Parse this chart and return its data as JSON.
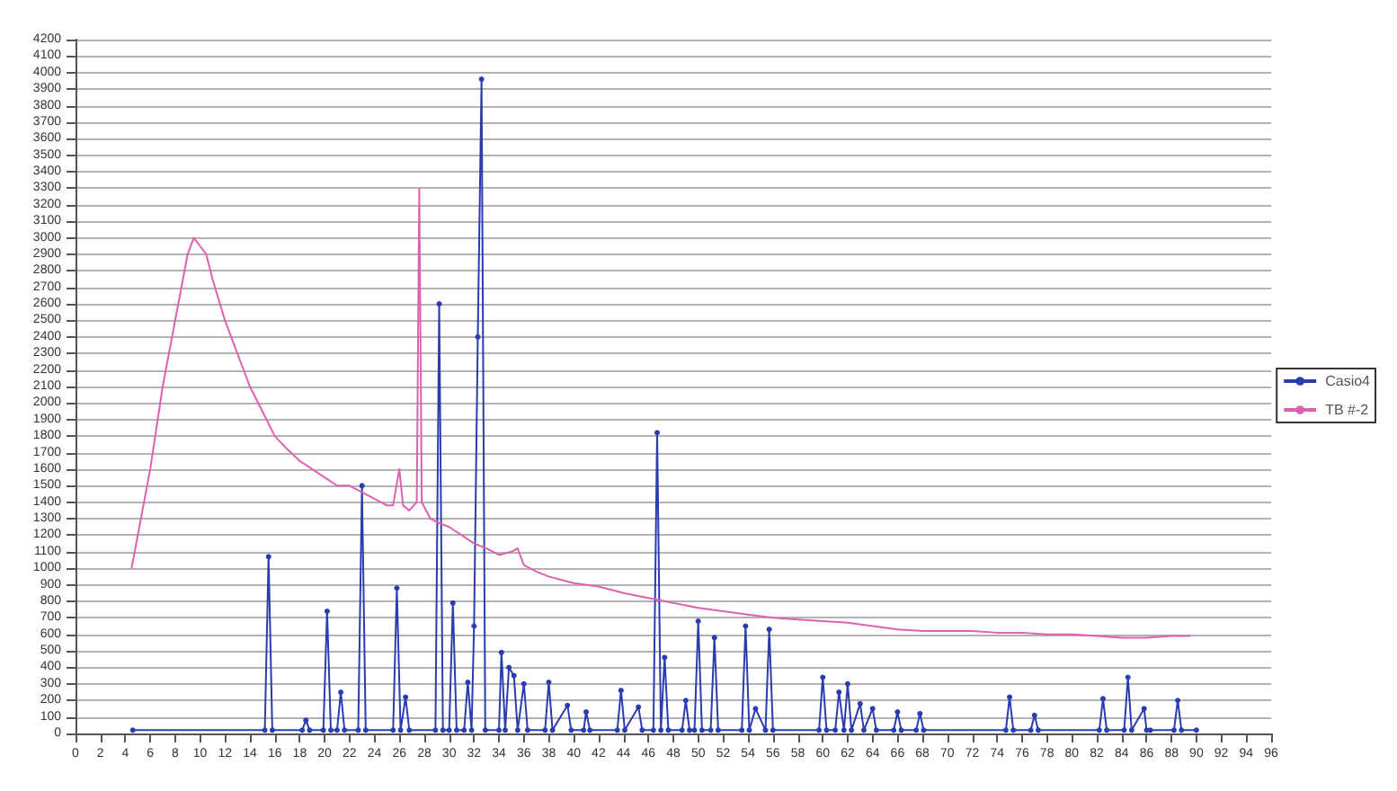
{
  "chart_data": {
    "type": "line",
    "xlim": [
      0,
      96
    ],
    "xticks": [
      0,
      2,
      4,
      6,
      8,
      10,
      12,
      14,
      16,
      18,
      20,
      22,
      24,
      26,
      28,
      30,
      32,
      34,
      36,
      38,
      40,
      42,
      44,
      46,
      48,
      50,
      52,
      54,
      56,
      58,
      60,
      62,
      64,
      66,
      68,
      70,
      72,
      74,
      76,
      78,
      80,
      82,
      84,
      86,
      88,
      90,
      92,
      94,
      96
    ],
    "ylim": [
      0,
      4200
    ],
    "yticks": [
      0,
      100,
      200,
      300,
      400,
      500,
      600,
      700,
      800,
      900,
      1000,
      1100,
      1200,
      1300,
      1400,
      1500,
      1600,
      1700,
      1800,
      1900,
      2000,
      2100,
      2200,
      2300,
      2400,
      2500,
      2600,
      2700,
      2800,
      2900,
      3000,
      3100,
      3200,
      3300,
      3400,
      3500,
      3600,
      3700,
      3800,
      3900,
      4000,
      4100,
      4200
    ],
    "grid": "y",
    "legend": "right",
    "series": [
      {
        "name": "Casio4",
        "color": "#2a3cb0",
        "marker": "circle",
        "x": [
          4.6,
          15.2,
          15.5,
          15.8,
          18.2,
          18.5,
          18.8,
          19.9,
          20.2,
          20.5,
          21,
          21.3,
          21.6,
          22.7,
          23,
          23.3,
          25.5,
          25.8,
          26.1,
          26.5,
          26.8,
          28.9,
          29.2,
          29.5,
          30,
          30.3,
          30.6,
          31.2,
          31.5,
          31.8,
          32,
          32.3,
          32.6,
          32.9,
          34,
          34.2,
          34.5,
          34.8,
          35.2,
          35.5,
          36,
          36.3,
          37.7,
          38,
          38.3,
          39.5,
          39.8,
          40.8,
          41,
          41.3,
          43.5,
          43.8,
          44.1,
          45.2,
          45.5,
          46.4,
          46.7,
          47,
          47.3,
          47.6,
          48.7,
          49,
          49.3,
          49.7,
          50,
          50.3,
          51,
          51.3,
          51.6,
          53.5,
          53.8,
          54.1,
          54.6,
          55.4,
          55.7,
          56,
          59.7,
          60,
          60.3,
          61,
          61.3,
          61.7,
          62,
          62.3,
          63,
          63.3,
          64,
          64.3,
          65.7,
          66,
          66.3,
          67.5,
          67.8,
          68.1,
          74.7,
          75,
          75.3,
          76.7,
          77,
          77.3,
          82.2,
          82.5,
          82.8,
          84.2,
          84.5,
          84.8,
          85.8,
          86,
          86.3,
          88.2,
          88.5,
          88.8,
          90
        ],
        "values": [
          20,
          20,
          1070,
          20,
          20,
          80,
          20,
          20,
          740,
          20,
          20,
          250,
          20,
          20,
          1500,
          20,
          20,
          880,
          20,
          220,
          20,
          20,
          2600,
          20,
          20,
          790,
          20,
          20,
          310,
          20,
          650,
          2400,
          3960,
          20,
          20,
          490,
          20,
          400,
          350,
          20,
          300,
          20,
          20,
          310,
          20,
          170,
          20,
          20,
          130,
          20,
          20,
          260,
          20,
          160,
          20,
          20,
          1820,
          20,
          460,
          20,
          20,
          200,
          20,
          20,
          680,
          20,
          20,
          580,
          20,
          20,
          650,
          20,
          150,
          20,
          630,
          20,
          20,
          340,
          20,
          20,
          250,
          20,
          300,
          20,
          180,
          20,
          150,
          20,
          20,
          130,
          20,
          20,
          120,
          20,
          20,
          220,
          20,
          20,
          110,
          20,
          20,
          210,
          20,
          20,
          340,
          20,
          150,
          20,
          20,
          20,
          200,
          20,
          20
        ]
      },
      {
        "name": "TB #-2",
        "color": "#e060b0",
        "marker": "none",
        "x": [
          4.5,
          6,
          7,
          8,
          9,
          9.5,
          10,
          10.5,
          11,
          12,
          13,
          14,
          15,
          16,
          17,
          18,
          19,
          20,
          21,
          22,
          23,
          24,
          25,
          25.5,
          26,
          26.3,
          26.8,
          27.4,
          27.6,
          27.8,
          28.5,
          29,
          30,
          31,
          32,
          33,
          34,
          35,
          35.5,
          36,
          37,
          38,
          40,
          42,
          44,
          46,
          48,
          50,
          52,
          54,
          56,
          58,
          60,
          62,
          64,
          66,
          68,
          70,
          72,
          74,
          76,
          78,
          80,
          82,
          84,
          86,
          88,
          89.5
        ],
        "values": [
          1000,
          1600,
          2100,
          2500,
          2900,
          3000,
          2950,
          2900,
          2750,
          2500,
          2300,
          2100,
          1950,
          1800,
          1720,
          1650,
          1600,
          1550,
          1500,
          1500,
          1460,
          1420,
          1380,
          1380,
          1600,
          1380,
          1350,
          1400,
          3300,
          1400,
          1300,
          1280,
          1250,
          1200,
          1150,
          1120,
          1080,
          1100,
          1120,
          1020,
          980,
          950,
          910,
          890,
          850,
          820,
          790,
          760,
          740,
          720,
          700,
          690,
          680,
          670,
          650,
          630,
          620,
          620,
          620,
          610,
          610,
          600,
          600,
          590,
          580,
          580,
          590,
          590
        ]
      }
    ]
  }
}
